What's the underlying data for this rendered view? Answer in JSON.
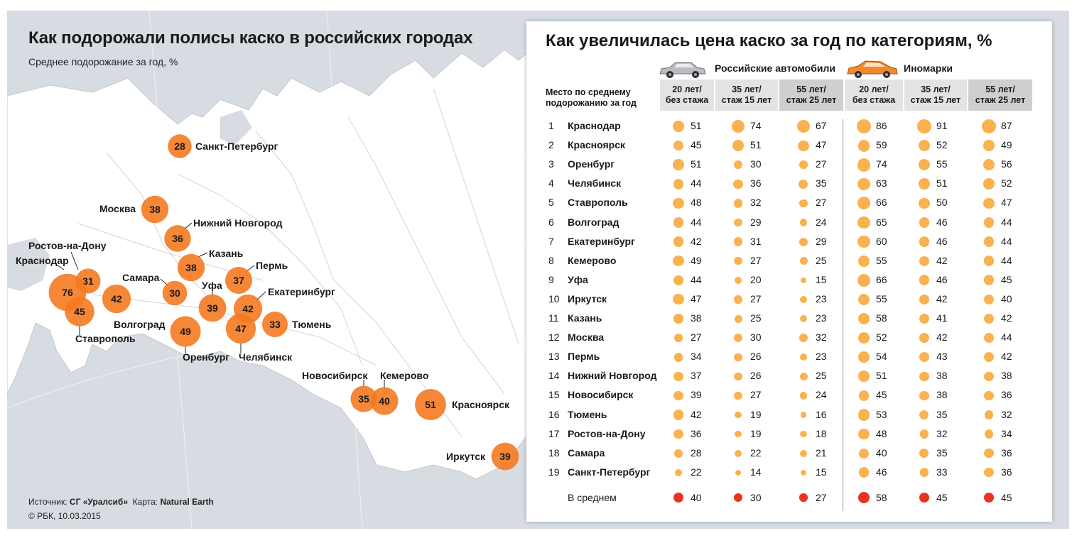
{
  "colors": {
    "map_bubble": "#f47a21",
    "dot": "#f9b24f",
    "avg_dot": "#e8331f",
    "sea": "#d7dce2",
    "land": "#ffffff"
  },
  "map": {
    "title": "Как подорожали полисы каско в российских городах",
    "subtitle": "Среднее подорожание за год, %",
    "source_label": "Источник:",
    "source_value": "СГ «Уралсиб»",
    "map_label": "Карта:",
    "map_value": "Natural Earth",
    "copyright": "© РБК, 10.03.2015"
  },
  "table": {
    "title": "Как увеличилась цена каско за год по категориям, %",
    "group_russian": "Российские автомобили",
    "group_foreign": "Иномарки",
    "rank_header": "Место по среднему подорожанию за год",
    "columns": [
      "20 лет/\nбез стажа",
      "35 лет/\nстаж 15 лет",
      "55 лет/\nстаж 25 лет",
      "20 лет/\nбез стажа",
      "35 лет/\nстаж 15 лет",
      "55 лет/\nстаж 25 лет"
    ],
    "average_label": "В среднем",
    "average": [
      40,
      30,
      27,
      58,
      45,
      45
    ]
  },
  "chart_data": [
    {
      "type": "scatter",
      "title": "Как подорожали полисы каско в российских городах",
      "subtitle": "Среднее подорожание за год, %",
      "points": [
        {
          "city": "Санкт-Петербург",
          "value": 28
        },
        {
          "city": "Москва",
          "value": 38
        },
        {
          "city": "Нижний Новгород",
          "value": 36
        },
        {
          "city": "Ростов-на-Дону",
          "value": 31
        },
        {
          "city": "Краснодар",
          "value": 76
        },
        {
          "city": "Казань",
          "value": 38
        },
        {
          "city": "Самара",
          "value": 30
        },
        {
          "city": "Пермь",
          "value": 37
        },
        {
          "city": "Уфа",
          "value": 39
        },
        {
          "city": "Екатеринбург",
          "value": 42
        },
        {
          "city": "Волгоград",
          "value": 42
        },
        {
          "city": "Ставрополь",
          "value": 45
        },
        {
          "city": "Тюмень",
          "value": 33
        },
        {
          "city": "Оренбург",
          "value": 49
        },
        {
          "city": "Челябинск",
          "value": 47
        },
        {
          "city": "Новосибирск",
          "value": 35
        },
        {
          "city": "Кемерово",
          "value": 40
        },
        {
          "city": "Красноярск",
          "value": 51
        },
        {
          "city": "Иркутск",
          "value": 39
        }
      ]
    },
    {
      "type": "table",
      "title": "Как увеличилась цена каско за год по категориям, %",
      "groups": [
        "Российские автомобили",
        "Иномарки"
      ],
      "columns": [
        "20 лет/без стажа",
        "35 лет/стаж 15 лет",
        "55 лет/стаж 25 лет",
        "20 лет/без стажа",
        "35 лет/стаж 15 лет",
        "55 лет/стаж 25 лет"
      ],
      "rows": [
        {
          "rank": 1,
          "city": "Краснодар",
          "values": [
            51,
            74,
            67,
            86,
            91,
            87
          ]
        },
        {
          "rank": 2,
          "city": "Красноярск",
          "values": [
            45,
            51,
            47,
            59,
            52,
            49
          ]
        },
        {
          "rank": 3,
          "city": "Оренбург",
          "values": [
            51,
            30,
            27,
            74,
            55,
            56
          ]
        },
        {
          "rank": 4,
          "city": "Челябинск",
          "values": [
            44,
            36,
            35,
            63,
            51,
            52
          ]
        },
        {
          "rank": 5,
          "city": "Ставрополь",
          "values": [
            48,
            32,
            27,
            66,
            50,
            47
          ]
        },
        {
          "rank": 6,
          "city": "Волгоград",
          "values": [
            44,
            29,
            24,
            65,
            46,
            44
          ]
        },
        {
          "rank": 7,
          "city": "Екатеринбург",
          "values": [
            42,
            31,
            29,
            60,
            46,
            44
          ]
        },
        {
          "rank": 8,
          "city": "Кемерово",
          "values": [
            49,
            27,
            25,
            55,
            42,
            44
          ]
        },
        {
          "rank": 9,
          "city": "Уфа",
          "values": [
            44,
            20,
            15,
            66,
            46,
            45
          ]
        },
        {
          "rank": 10,
          "city": "Иркутск",
          "values": [
            47,
            27,
            23,
            55,
            42,
            40
          ]
        },
        {
          "rank": 11,
          "city": "Казань",
          "values": [
            38,
            25,
            23,
            58,
            41,
            42
          ]
        },
        {
          "rank": 12,
          "city": "Москва",
          "values": [
            27,
            30,
            32,
            52,
            42,
            44
          ]
        },
        {
          "rank": 13,
          "city": "Пермь",
          "values": [
            34,
            26,
            23,
            54,
            43,
            42
          ]
        },
        {
          "rank": 14,
          "city": "Нижний Новгород",
          "values": [
            37,
            26,
            25,
            51,
            38,
            38
          ]
        },
        {
          "rank": 15,
          "city": "Новосибирск",
          "values": [
            39,
            27,
            24,
            45,
            38,
            36
          ]
        },
        {
          "rank": 16,
          "city": "Тюмень",
          "values": [
            42,
            19,
            16,
            53,
            35,
            32
          ]
        },
        {
          "rank": 17,
          "city": "Ростов-на-Дону",
          "values": [
            36,
            19,
            18,
            48,
            32,
            34
          ]
        },
        {
          "rank": 18,
          "city": "Самара",
          "values": [
            28,
            22,
            21,
            40,
            35,
            36
          ]
        },
        {
          "rank": 19,
          "city": "Санкт-Петербург",
          "values": [
            22,
            14,
            15,
            46,
            33,
            36
          ]
        }
      ],
      "average": {
        "label": "В среднем",
        "values": [
          40,
          30,
          27,
          58,
          45,
          45
        ]
      }
    }
  ]
}
